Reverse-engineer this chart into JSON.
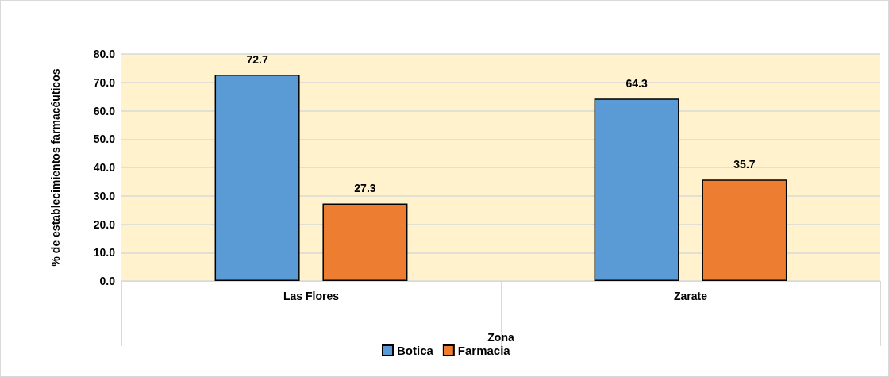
{
  "chart_data": {
    "type": "bar",
    "xlabel": "Zona",
    "ylabel": "% de establecimientos farmacéuticos",
    "categories": [
      "Las Flores",
      "Zarate"
    ],
    "series": [
      {
        "name": "Botica",
        "color": "#5b9bd5",
        "values": [
          72.7,
          64.3
        ]
      },
      {
        "name": "Farmacia",
        "color": "#ed7d31",
        "values": [
          27.3,
          35.7
        ]
      }
    ],
    "ylim": [
      0,
      80
    ],
    "yticks": [
      {
        "value": 0,
        "label": "0.0"
      },
      {
        "value": 10,
        "label": "10.0"
      },
      {
        "value": 20,
        "label": "20.0"
      },
      {
        "value": 30,
        "label": "30.0"
      },
      {
        "value": 40,
        "label": "40.0"
      },
      {
        "value": 50,
        "label": "50.0"
      },
      {
        "value": 60,
        "label": "60.0"
      },
      {
        "value": 70,
        "label": "70.0"
      },
      {
        "value": 80,
        "label": "80.0"
      }
    ],
    "grid": "y",
    "legend": "bottom",
    "data_labels": true
  }
}
